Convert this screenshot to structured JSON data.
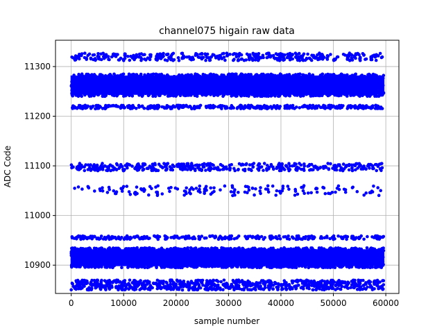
{
  "chart_data": {
    "type": "scatter",
    "title": "channel075 higain raw data",
    "xlabel": "sample number",
    "ylabel": "ADC Code",
    "xlim": [
      -3000,
      62500
    ],
    "ylim": [
      10843,
      11353
    ],
    "xticks": [
      0,
      10000,
      20000,
      30000,
      40000,
      50000,
      60000
    ],
    "xtick_labels": [
      "0",
      "10000",
      "20000",
      "30000",
      "40000",
      "50000",
      "60000"
    ],
    "yticks": [
      10900,
      11000,
      11100,
      11200,
      11300
    ],
    "ytick_labels": [
      "10900",
      "11000",
      "11100",
      "11200",
      "11300"
    ],
    "grid": true,
    "marker_color": "#0000ff",
    "x_range": [
      0,
      59600
    ],
    "bands": [
      {
        "y_min": 11312,
        "y_max": 11327,
        "density": "dense",
        "points": 400
      },
      {
        "y_min": 11240,
        "y_max": 11285,
        "density": "saturated",
        "points": 2200
      },
      {
        "y_min": 11215,
        "y_max": 11222,
        "density": "dense",
        "points": 400
      },
      {
        "y_min": 11090,
        "y_max": 11105,
        "density": "medium",
        "points": 420
      },
      {
        "y_min": 11040,
        "y_max": 11060,
        "density": "sparse",
        "points": 160
      },
      {
        "y_min": 10952,
        "y_max": 10959,
        "density": "dense",
        "points": 300
      },
      {
        "y_min": 10895,
        "y_max": 10935,
        "density": "saturated",
        "points": 2400
      },
      {
        "y_min": 10850,
        "y_max": 10870,
        "density": "dense",
        "points": 800
      }
    ]
  }
}
